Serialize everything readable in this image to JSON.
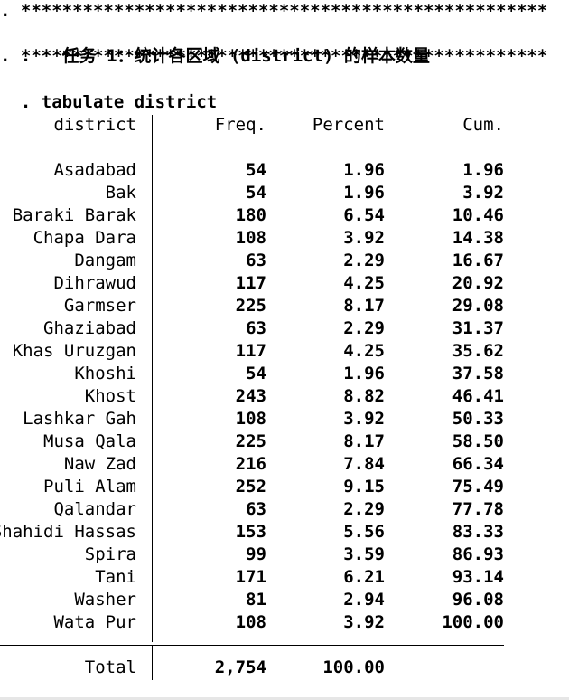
{
  "log": {
    "star_line": ". ***************************************************",
    "comment_prefix": ". * ",
    "comment_task": "任务 1：统计各区域",
    "comment_paren": " (district) ",
    "comment_rest": "的样本数量",
    "command": ". tabulate district"
  },
  "table": {
    "headers": {
      "district": "district",
      "freq": "Freq.",
      "percent": "Percent",
      "cum": "Cum."
    },
    "rows": [
      {
        "district": "Asadabad",
        "freq": "54",
        "percent": "1.96",
        "cum": "1.96"
      },
      {
        "district": "Bak",
        "freq": "54",
        "percent": "1.96",
        "cum": "3.92"
      },
      {
        "district": "Baraki Barak",
        "freq": "180",
        "percent": "6.54",
        "cum": "10.46"
      },
      {
        "district": "Chapa Dara",
        "freq": "108",
        "percent": "3.92",
        "cum": "14.38"
      },
      {
        "district": "Dangam",
        "freq": "63",
        "percent": "2.29",
        "cum": "16.67"
      },
      {
        "district": "Dihrawud",
        "freq": "117",
        "percent": "4.25",
        "cum": "20.92"
      },
      {
        "district": "Garmser",
        "freq": "225",
        "percent": "8.17",
        "cum": "29.08"
      },
      {
        "district": "Ghaziabad",
        "freq": "63",
        "percent": "2.29",
        "cum": "31.37"
      },
      {
        "district": "Khas Uruzgan",
        "freq": "117",
        "percent": "4.25",
        "cum": "35.62"
      },
      {
        "district": "Khoshi",
        "freq": "54",
        "percent": "1.96",
        "cum": "37.58"
      },
      {
        "district": "Khost",
        "freq": "243",
        "percent": "8.82",
        "cum": "46.41"
      },
      {
        "district": "Lashkar Gah",
        "freq": "108",
        "percent": "3.92",
        "cum": "50.33"
      },
      {
        "district": "Musa Qala",
        "freq": "225",
        "percent": "8.17",
        "cum": "58.50"
      },
      {
        "district": "Naw Zad",
        "freq": "216",
        "percent": "7.84",
        "cum": "66.34"
      },
      {
        "district": "Puli Alam",
        "freq": "252",
        "percent": "9.15",
        "cum": "75.49"
      },
      {
        "district": "Qalandar",
        "freq": "63",
        "percent": "2.29",
        "cum": "77.78"
      },
      {
        "district": "Shahidi Hassas",
        "freq": "153",
        "percent": "5.56",
        "cum": "83.33"
      },
      {
        "district": "Spira",
        "freq": "99",
        "percent": "3.59",
        "cum": "86.93"
      },
      {
        "district": "Tani",
        "freq": "171",
        "percent": "6.21",
        "cum": "93.14"
      },
      {
        "district": "Washer",
        "freq": "81",
        "percent": "2.94",
        "cum": "96.08"
      },
      {
        "district": "Wata Pur",
        "freq": "108",
        "percent": "3.92",
        "cum": "100.00"
      }
    ],
    "total": {
      "label": "Total",
      "freq": "2,754",
      "percent": "100.00"
    }
  }
}
